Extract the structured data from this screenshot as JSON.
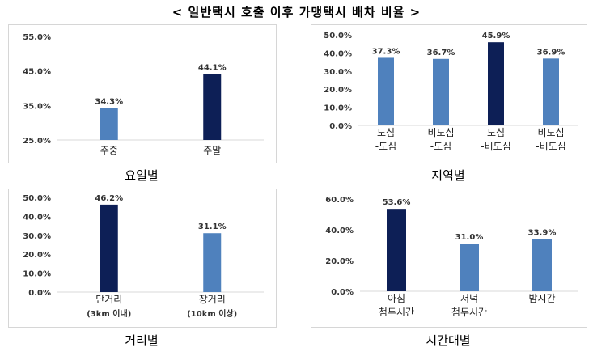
{
  "title": "< 일반택시 호출 이후 가맹택시 배차 비율 >",
  "colors": {
    "light": "#4f81bd",
    "dark": "#0d1f56",
    "grid": "#d9d9d9",
    "axis": "#d9d9d9"
  },
  "chart_data": [
    {
      "type": "bar",
      "caption": "요일별",
      "categories": [
        [
          "주중"
        ],
        [
          "주말"
        ]
      ],
      "values": [
        34.3,
        44.1
      ],
      "value_labels": [
        "34.3%",
        "44.1%"
      ],
      "highlight": [
        false,
        true
      ],
      "ylim": [
        25,
        55
      ],
      "yticks": [
        25,
        35,
        45,
        55
      ],
      "ytick_labels": [
        "25.0%",
        "35.0%",
        "45.0%",
        "55.0%"
      ],
      "grid": false
    },
    {
      "type": "bar",
      "caption": "지역별",
      "categories": [
        [
          "도심",
          "-도심"
        ],
        [
          "비도심",
          "-도심"
        ],
        [
          "도심",
          "-비도심"
        ],
        [
          "비도심",
          "-비도심"
        ]
      ],
      "values": [
        37.3,
        36.7,
        45.9,
        36.9
      ],
      "value_labels": [
        "37.3%",
        "36.7%",
        "45.9%",
        "36.9%"
      ],
      "highlight": [
        false,
        false,
        true,
        false
      ],
      "ylim": [
        0,
        50
      ],
      "yticks": [
        0,
        10,
        20,
        30,
        40,
        50
      ],
      "ytick_labels": [
        "0.0%",
        "10.0%",
        "20.0%",
        "30.0%",
        "40.0%",
        "50.0%"
      ],
      "grid": false
    },
    {
      "type": "bar",
      "caption": "거리별",
      "categories": [
        [
          "단거리",
          "(3km 이내)"
        ],
        [
          "장거리",
          "(10km 이상)"
        ]
      ],
      "values": [
        46.2,
        31.1
      ],
      "value_labels": [
        "46.2%",
        "31.1%"
      ],
      "highlight": [
        true,
        false
      ],
      "ylim": [
        0,
        50
      ],
      "yticks": [
        0,
        10,
        20,
        30,
        40,
        50
      ],
      "ytick_labels": [
        "0.0%",
        "10.0%",
        "20.0%",
        "30.0%",
        "40.0%",
        "50.0%"
      ],
      "grid": false
    },
    {
      "type": "bar",
      "caption": "시간대별",
      "categories": [
        [
          "아침",
          "첨두시간"
        ],
        [
          "저녁",
          "첨두시간"
        ],
        [
          "밤시간"
        ]
      ],
      "values": [
        53.6,
        31.0,
        33.9
      ],
      "value_labels": [
        "53.6%",
        "31.0%",
        "33.9%"
      ],
      "highlight": [
        true,
        false,
        false
      ],
      "ylim": [
        0,
        60
      ],
      "yticks": [
        0,
        20,
        40,
        60
      ],
      "ytick_labels": [
        "0.0%",
        "20.0%",
        "40.0%",
        "60.0%"
      ],
      "grid": false
    }
  ]
}
